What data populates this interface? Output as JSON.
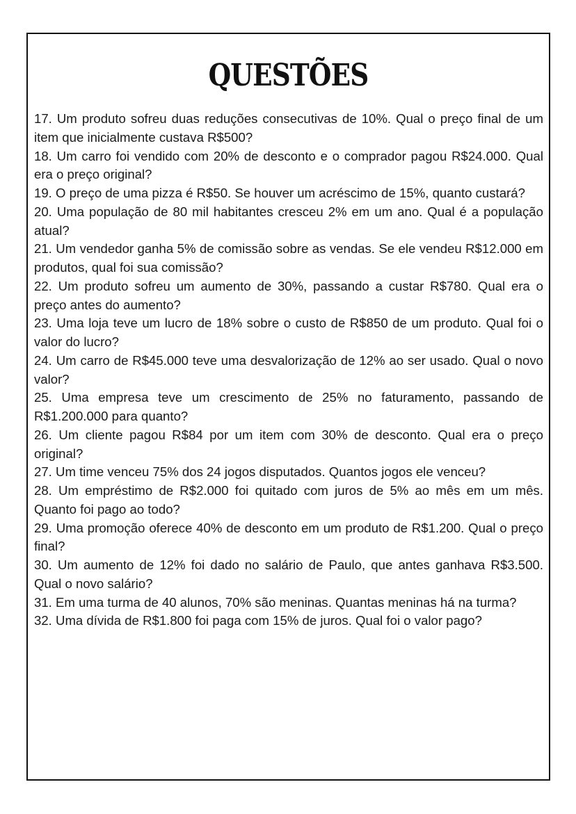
{
  "title": "QUESTÕES",
  "questions": [
    "17. Um produto sofreu duas reduções consecutivas de 10%. Qual o preço final de um item que inicialmente custava R$500?",
    "18. Um carro foi vendido com 20% de desconto e o comprador pagou R$24.000. Qual era o preço original?",
    "19. O preço de uma pizza é R$50. Se houver um acréscimo de 15%, quanto custará?",
    "20. Uma população de 80 mil habitantes cresceu 2% em um ano. Qual é a população atual?",
    "21. Um vendedor ganha 5% de comissão sobre as vendas. Se ele vendeu R$12.000 em produtos, qual foi sua comissão?",
    "22. Um produto sofreu um aumento de 30%, passando a custar R$780. Qual era o preço antes do aumento?",
    "23. Uma loja teve um lucro de 18% sobre o custo de R$850 de um produto. Qual foi o valor do lucro?",
    "24. Um carro de R$45.000 teve uma desvalorização de 12% ao ser usado. Qual o novo valor?",
    "25. Uma empresa teve um crescimento de 25% no faturamento, passando de R$1.200.000 para quanto?",
    "26. Um cliente pagou R$84 por um item com 30% de desconto. Qual era o preço original?",
    "27. Um time venceu 75% dos 24 jogos disputados. Quantos jogos ele venceu?",
    "28. Um empréstimo de R$2.000 foi quitado com juros de 5% ao mês em um mês. Quanto foi pago ao todo?",
    "29. Uma promoção oferece 40% de desconto em um produto de R$1.200. Qual o preço final?",
    "30. Um aumento de 12% foi dado no salário de Paulo, que antes ganhava R$3.500. Qual o novo salário?",
    "31. Em uma turma de 40 alunos, 70% são meninas. Quantas meninas há na turma?",
    "32. Uma dívida de R$1.800 foi paga com 15% de juros. Qual foi o valor pago?"
  ]
}
